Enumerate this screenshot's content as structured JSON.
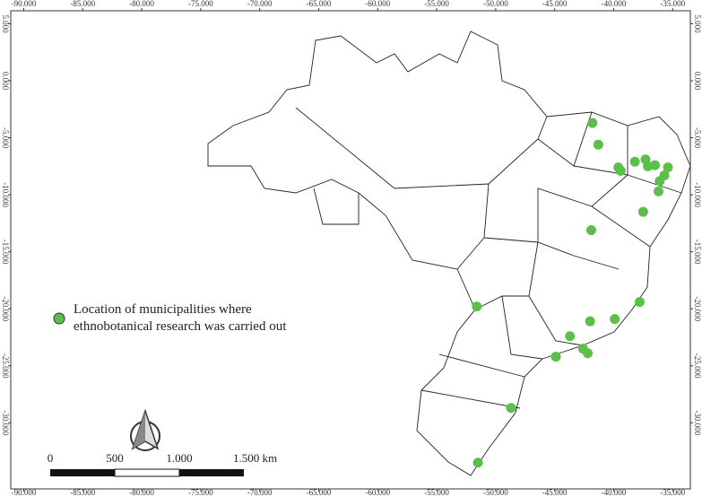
{
  "chart_data": {
    "type": "scatter",
    "xlim": [
      -91.1,
      -33.5
    ],
    "ylim": [
      6.14,
      -35.8
    ],
    "xticks": [
      {
        "value": -90,
        "label": "-90.000"
      },
      {
        "value": -85,
        "label": "-85.000"
      },
      {
        "value": -80,
        "label": "-80.000"
      },
      {
        "value": -75,
        "label": "-75.000"
      },
      {
        "value": -70,
        "label": "-70.000"
      },
      {
        "value": -65,
        "label": "-65.000"
      },
      {
        "value": -60,
        "label": "-60.000"
      },
      {
        "value": -55,
        "label": "-55.000"
      },
      {
        "value": -50,
        "label": "-50.000"
      },
      {
        "value": -45,
        "label": "-45.000"
      },
      {
        "value": -40,
        "label": "-40.000"
      },
      {
        "value": -35,
        "label": "-35.000"
      }
    ],
    "yticks": [
      {
        "value": 5,
        "label": "5.000"
      },
      {
        "value": 0,
        "label": "0.000"
      },
      {
        "value": -5,
        "label": "-5.000"
      },
      {
        "value": -10,
        "label": "-10.000"
      },
      {
        "value": -15,
        "label": "-15.000"
      },
      {
        "value": -20,
        "label": "-20.000"
      },
      {
        "value": -25,
        "label": "-25.000"
      },
      {
        "value": -30,
        "label": "-30.000"
      }
    ],
    "series": [
      {
        "name": "Location of municipalities where ethnobotanical research was carried out",
        "color": "#5cbf4a",
        "x": [
          -41.8,
          -41.3,
          -39.6,
          -39.4,
          -38.2,
          -37.3,
          -37.1,
          -36.5,
          -35.4,
          -35.7,
          -36.1,
          -36.2,
          -37.5,
          -41.9,
          -51.6,
          -37.8,
          -39.9,
          -42.0,
          -43.7,
          -42.6,
          -42.2,
          -44.9,
          -48.7,
          -51.5
        ],
        "values": [
          -3.7,
          -5.6,
          -7.6,
          -7.9,
          -7.1,
          -6.9,
          -7.5,
          -7.4,
          -7.6,
          -8.3,
          -8.8,
          -9.7,
          -11.5,
          -13.1,
          -19.8,
          -19.4,
          -20.9,
          -21.1,
          -22.4,
          -23.5,
          -23.9,
          -24.2,
          -28.7,
          -33.5
        ]
      }
    ],
    "scale_bar": {
      "labels": [
        "0",
        "500",
        "1.000",
        "1.500 km"
      ]
    }
  }
}
